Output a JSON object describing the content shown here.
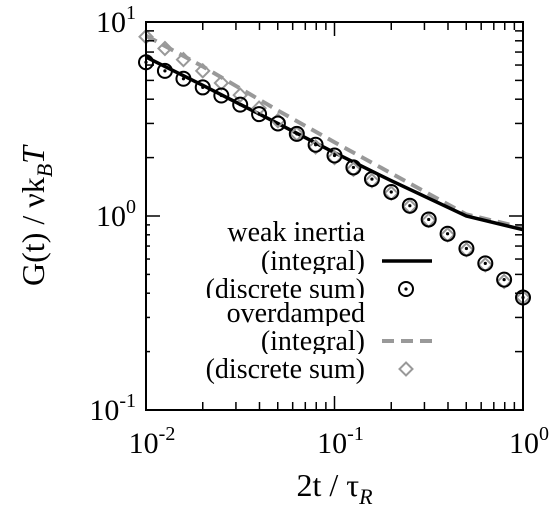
{
  "chart_data": {
    "type": "scatter",
    "title": "",
    "xscale": "log",
    "yscale": "log",
    "xlim": [
      0.01,
      1
    ],
    "ylim": [
      0.1,
      10
    ],
    "grid": false,
    "legend_position": "bottom-right",
    "xlabel": {
      "main": "2t / τ",
      "sub": "R"
    },
    "ylabel": {
      "main": "G(t) / νk",
      "sub": "B",
      "tail": "T"
    },
    "x_ticks": [
      {
        "value": 0.01,
        "base": "10",
        "exp": "-2"
      },
      {
        "value": 0.1,
        "base": "10",
        "exp": "-1"
      },
      {
        "value": 1,
        "base": "10",
        "exp": "0"
      }
    ],
    "y_ticks": [
      {
        "value": 0.1,
        "base": "10",
        "exp": "-1"
      },
      {
        "value": 1,
        "base": "10",
        "exp": "0"
      },
      {
        "value": 10,
        "base": "10",
        "exp": "1"
      }
    ],
    "legend": [
      {
        "text": "weak inertia",
        "kind": "header"
      },
      {
        "text": "(integral)",
        "kind": "series",
        "series": "weak_integral"
      },
      {
        "text": "(discrete sum)",
        "kind": "series",
        "series": "weak_discrete"
      },
      {
        "text": "overdamped",
        "kind": "header"
      },
      {
        "text": "(integral)",
        "kind": "series",
        "series": "over_integral"
      },
      {
        "text": "(discrete sum)",
        "kind": "series",
        "series": "over_discrete"
      }
    ],
    "series": [
      {
        "id": "weak_integral",
        "style": "line",
        "color": "#000000",
        "x": [
          0.01,
          0.02,
          0.05,
          0.1,
          0.2,
          0.5,
          1.0
        ],
        "y": [
          6.6,
          4.72,
          3.0,
          2.12,
          1.52,
          1.0,
          0.85
        ]
      },
      {
        "id": "over_integral",
        "style": "dashed",
        "color": "#999999",
        "x": [
          0.01,
          0.02,
          0.05,
          0.1,
          0.2,
          0.5,
          1.0
        ],
        "y": [
          8.5,
          5.9,
          3.5,
          2.4,
          1.66,
          1.02,
          0.87
        ]
      },
      {
        "id": "weak_discrete",
        "style": "circle",
        "color": "#000000",
        "x": [
          0.01,
          0.0126,
          0.0158,
          0.02,
          0.0251,
          0.0316,
          0.0398,
          0.0501,
          0.0631,
          0.0794,
          0.1,
          0.126,
          0.158,
          0.2,
          0.251,
          0.316,
          0.398,
          0.501,
          0.631,
          0.794,
          1.0
        ],
        "y": [
          6.2,
          5.6,
          5.1,
          4.6,
          4.18,
          3.75,
          3.35,
          3.0,
          2.65,
          2.33,
          2.05,
          1.78,
          1.55,
          1.33,
          1.13,
          0.96,
          0.81,
          0.68,
          0.57,
          0.47,
          0.38
        ]
      },
      {
        "id": "over_discrete",
        "style": "diamond",
        "color": "#999999",
        "x": [
          0.01,
          0.0126,
          0.0158,
          0.02,
          0.0251,
          0.0316,
          0.0398,
          0.0501,
          0.0631,
          0.0794,
          0.1,
          0.126,
          0.158,
          0.2,
          0.251,
          0.316,
          0.398,
          0.501,
          0.631,
          0.794,
          1.0
        ],
        "y": [
          8.4,
          7.3,
          6.4,
          5.6,
          4.85,
          4.2,
          3.6,
          3.1,
          2.65,
          2.27,
          2.0,
          1.74,
          1.52,
          1.31,
          1.12,
          0.95,
          0.8,
          0.67,
          0.56,
          0.46,
          0.38
        ]
      }
    ]
  }
}
